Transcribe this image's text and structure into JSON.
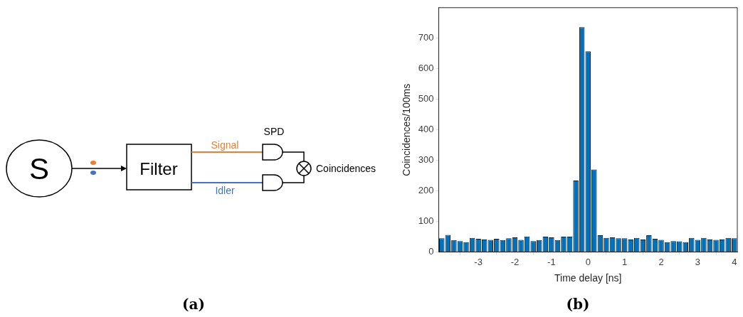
{
  "chart_data": [
    {
      "type": "other",
      "title": "(a)",
      "annotations": [
        "S",
        "Filter",
        "Signal",
        "Idler",
        "SPD",
        "Coincidences"
      ]
    },
    {
      "type": "histogram",
      "title": "(b)",
      "xlabel": "Time delay [ns]",
      "ylabel": "Coincidences/100ms",
      "color": "#0072bd",
      "bins": [
        -4.083,
        -3.917,
        -3.75,
        -3.583,
        -3.417,
        -3.25,
        -3.083,
        -2.917,
        -2.75,
        -2.583,
        -2.417,
        -2.25,
        -2.083,
        -1.917,
        -1.75,
        -1.583,
        -1.417,
        -1.25,
        -1.083,
        -0.917,
        -0.75,
        -0.583,
        -0.417,
        -0.25,
        -0.083,
        0.083,
        0.25,
        0.417,
        0.583,
        0.75,
        0.917,
        1.083,
        1.25,
        1.417,
        1.583,
        1.75,
        1.917,
        2.083,
        2.25,
        2.417,
        2.583,
        2.75,
        2.917,
        3.083,
        3.25,
        3.417,
        3.583,
        3.75,
        3.917,
        4.083
      ],
      "values": [
        45,
        56,
        39,
        36,
        32,
        46,
        43,
        41,
        40,
        43,
        39,
        45,
        48,
        40,
        51,
        36,
        39,
        50,
        48,
        39,
        50,
        50,
        234,
        736,
        657,
        270,
        55,
        46,
        48,
        45,
        45,
        41,
        46,
        41,
        55,
        43,
        40,
        32,
        36,
        35,
        32,
        46,
        40,
        46,
        41,
        40,
        41,
        46,
        45
      ],
      "xlim": [
        -4.083,
        4.083
      ],
      "xticks": [
        -3,
        -2,
        -1,
        0,
        1,
        2,
        3,
        4
      ],
      "ylim": [
        0,
        800
      ],
      "yticks": [
        0,
        100,
        200,
        300,
        400,
        500,
        600,
        700
      ]
    }
  ]
}
